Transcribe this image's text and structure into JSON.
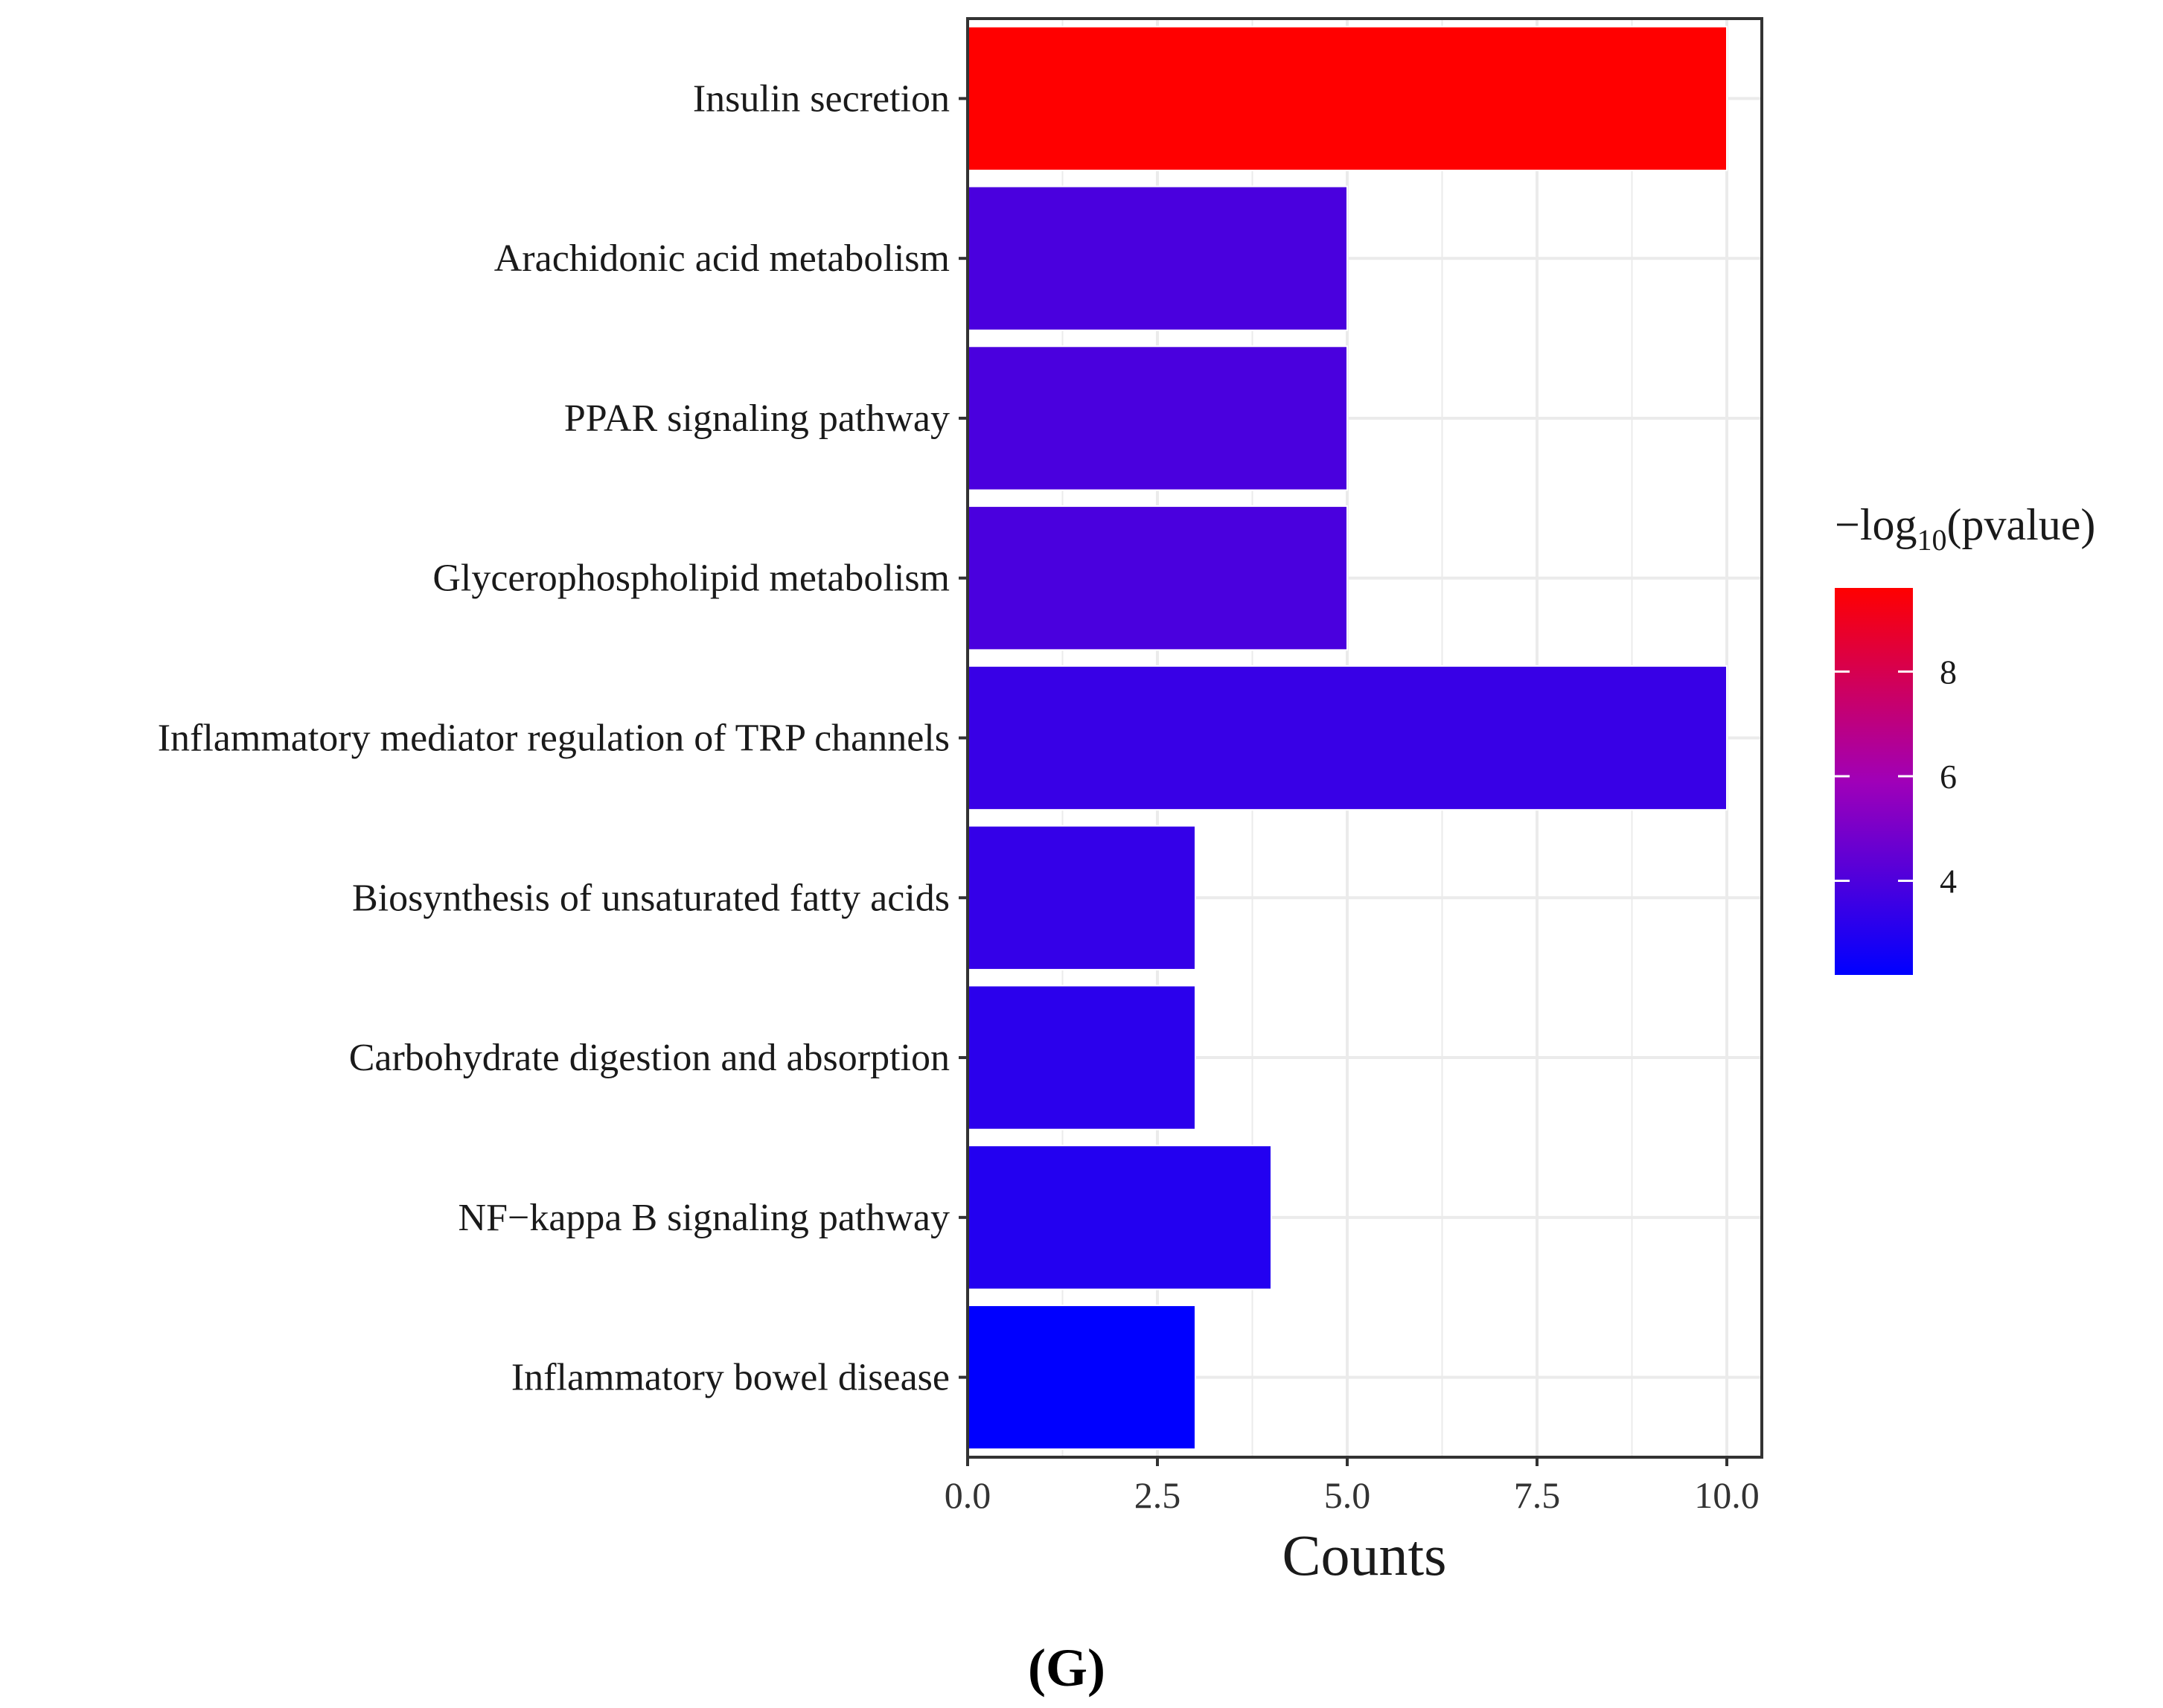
{
  "chart_data": {
    "type": "bar",
    "orientation": "horizontal",
    "categories": [
      "Insulin secretion",
      "Arachidonic acid metabolism",
      "PPAR signaling pathway",
      "Glycerophospholipid metabolism",
      "Inflammatory mediator regulation of TRP channels",
      "Biosynthesis of unsaturated fatty acids",
      "Carbohydrate digestion and absorption",
      "NF−kappa B signaling pathway",
      "Inflammatory bowel disease"
    ],
    "values": [
      10,
      5,
      5,
      5,
      10,
      3,
      3,
      4,
      3
    ],
    "color_values": [
      9.6,
      3.9,
      3.9,
      3.9,
      3.5,
      3.4,
      3.2,
      3.0,
      2.2
    ],
    "xlabel": "Counts",
    "xlim": [
      0,
      10.5
    ],
    "xticks": [
      "0.0",
      "2.5",
      "5.0",
      "7.5",
      "10.0"
    ],
    "xtick_values": [
      0,
      2.5,
      5,
      7.5,
      10
    ],
    "grid": true,
    "legend": {
      "title_prefix": "−log",
      "title_sub": "10",
      "title_suffix": "(pvalue)",
      "placement": "right",
      "range": [
        2.2,
        9.6
      ],
      "ticks": [
        "8",
        "6",
        "4"
      ],
      "tick_values": [
        8,
        6,
        4
      ],
      "low_color": "#0000ff",
      "high_color": "#ff0000"
    }
  },
  "panel_label": "(G)",
  "colors": {
    "panel_border": "#333333",
    "grid": "#ebebeb",
    "bar_outline": "#ffffff"
  }
}
